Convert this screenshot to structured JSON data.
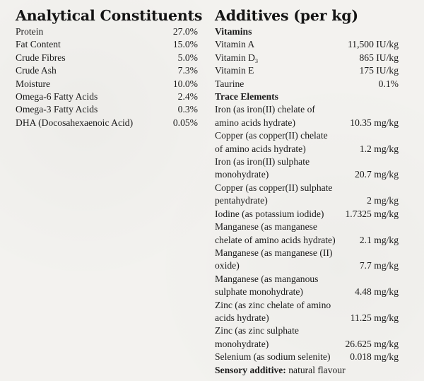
{
  "analytical": {
    "title": "Analytical Constituents",
    "rows": [
      {
        "label": "Protein",
        "value": "27.0%"
      },
      {
        "label": "Fat Content",
        "value": "15.0%"
      },
      {
        "label": "Crude Fibres",
        "value": "5.0%"
      },
      {
        "label": "Crude Ash",
        "value": "7.3%"
      },
      {
        "label": "Moisture",
        "value": "10.0%"
      },
      {
        "label": "Omega-6 Fatty Acids",
        "value": "2.4%"
      },
      {
        "label": "Omega-3 Fatty Acids",
        "value": "0.3%"
      },
      {
        "label": "DHA (Docosahexaenoic Acid)",
        "value": "0.05%"
      }
    ]
  },
  "additives": {
    "title": "Additives (per kg)",
    "vitamins_heading": "Vitamins",
    "vitamins": [
      {
        "label": "Vitamin A",
        "value": "11,500 IU/kg"
      },
      {
        "label": "Vitamin D",
        "sub": "3",
        "value": "865 IU/kg"
      },
      {
        "label": "Vitamin E",
        "value": "175 IU/kg"
      },
      {
        "label": "Taurine",
        "value": "0.1%"
      }
    ],
    "trace_heading": "Trace Elements",
    "trace": [
      {
        "line1": "Iron (as iron(II) chelate of",
        "line2": "amino acids hydrate)",
        "value": "10.35 mg/kg"
      },
      {
        "line1": "Copper (as copper(II) chelate",
        "line2": "of amino acids hydrate)",
        "value": "1.2 mg/kg"
      },
      {
        "line1": "Iron (as iron(II) sulphate",
        "line2": "monohydrate)",
        "value": "20.7 mg/kg"
      },
      {
        "line1": "Copper (as copper(II) sulphate",
        "line2": "pentahydrate)",
        "value": "2 mg/kg"
      },
      {
        "line1": "",
        "line2": "Iodine (as potassium iodide)",
        "value": "1.7325 mg/kg"
      },
      {
        "line1": "Manganese (as manganese",
        "line2": "chelate of amino acids hydrate)",
        "value": "2.1 mg/kg"
      },
      {
        "line1": "Manganese (as manganese (II)",
        "line2": "oxide)",
        "value": "7.7 mg/kg"
      },
      {
        "line1": "Manganese (as manganous",
        "line2": "sulphate monohydrate)",
        "value": "4.48 mg/kg"
      },
      {
        "line1": "Zinc (as zinc chelate of amino",
        "line2": "acids hydrate)",
        "value": "11.25 mg/kg"
      },
      {
        "line1": "Zinc (as zinc sulphate",
        "line2": "monohydrate)",
        "value": "26.625 mg/kg"
      },
      {
        "line1": "",
        "line2": "Selenium (as sodium selenite)",
        "value": "0.018 mg/kg"
      }
    ],
    "sensory_label": "Sensory additive:",
    "sensory_value": "natural flavour"
  }
}
